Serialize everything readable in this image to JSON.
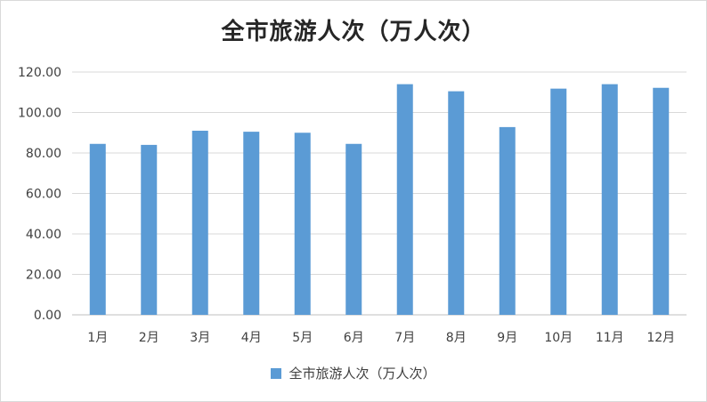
{
  "chart_data": {
    "type": "bar",
    "title": "全市旅游人次（万人次）",
    "categories": [
      "1月",
      "2月",
      "3月",
      "4月",
      "5月",
      "6月",
      "7月",
      "8月",
      "9月",
      "10月",
      "11月",
      "12月"
    ],
    "series": [
      {
        "name": "全市旅游人次（万人次）",
        "values": [
          84.5,
          84.0,
          91.0,
          90.5,
          90.0,
          84.5,
          114.0,
          110.5,
          92.8,
          111.8,
          114.0,
          112.2
        ]
      }
    ],
    "ylim": [
      0,
      120
    ],
    "yticks": [
      "0.00",
      "20.00",
      "40.00",
      "60.00",
      "80.00",
      "100.00",
      "120.00"
    ],
    "xlabel": "",
    "ylabel": "",
    "grid": true,
    "legend_position": "bottom",
    "colors": {
      "bar": "#5b9bd5",
      "grid": "#d9d9d9",
      "axis": "#bfbfbf"
    }
  }
}
